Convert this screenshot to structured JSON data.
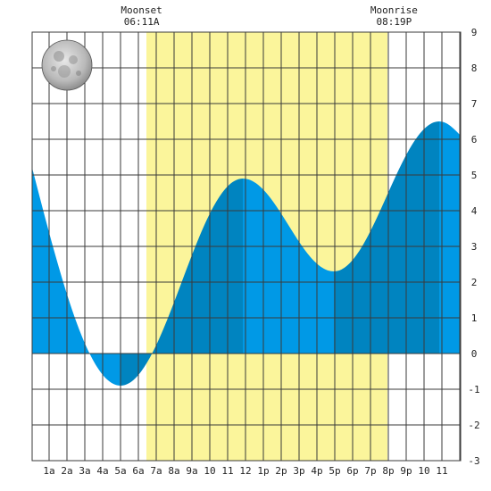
{
  "chart_data": {
    "type": "area",
    "title": "",
    "xlabel": "",
    "ylabel": "",
    "x_range_hours": [
      0.05,
      24.05
    ],
    "ylim": [
      -3,
      9
    ],
    "x_tick_labels": [
      {
        "hour": 1,
        "label": "1a"
      },
      {
        "hour": 2,
        "label": "2a"
      },
      {
        "hour": 3,
        "label": "3a"
      },
      {
        "hour": 4,
        "label": "4a"
      },
      {
        "hour": 5,
        "label": "5a"
      },
      {
        "hour": 6,
        "label": "6a"
      },
      {
        "hour": 7,
        "label": "7a"
      },
      {
        "hour": 8,
        "label": "8a"
      },
      {
        "hour": 9,
        "label": "9a"
      },
      {
        "hour": 10,
        "label": "10"
      },
      {
        "hour": 11,
        "label": "11"
      },
      {
        "hour": 12,
        "label": "12"
      },
      {
        "hour": 13,
        "label": "1p"
      },
      {
        "hour": 14,
        "label": "2p"
      },
      {
        "hour": 15,
        "label": "3p"
      },
      {
        "hour": 16,
        "label": "4p"
      },
      {
        "hour": 17,
        "label": "5p"
      },
      {
        "hour": 18,
        "label": "6p"
      },
      {
        "hour": 19,
        "label": "7p"
      },
      {
        "hour": 20,
        "label": "8p"
      },
      {
        "hour": 21,
        "label": "9p"
      },
      {
        "hour": 22,
        "label": "10"
      },
      {
        "hour": 23,
        "label": "11"
      }
    ],
    "y_tick_labels": [
      "-3",
      "-2",
      "-1",
      "0",
      "1",
      "2",
      "3",
      "4",
      "5",
      "6",
      "7",
      "8",
      "9"
    ],
    "y_ticks": [
      -3,
      -2,
      -1,
      0,
      1,
      2,
      3,
      4,
      5,
      6,
      7,
      8,
      9
    ],
    "tide_extremes": [
      {
        "hour": 5.0,
        "height": -0.9,
        "kind": "low"
      },
      {
        "hour": 11.85,
        "height": 4.9,
        "kind": "high"
      },
      {
        "hour": 16.95,
        "height": 2.3,
        "kind": "low"
      },
      {
        "hour": 22.85,
        "height": 6.5,
        "kind": "high"
      }
    ],
    "tide_start": {
      "hour": 0.05,
      "height": 5.2
    },
    "tide_end": {
      "hour": 24.05,
      "height": 6.1
    },
    "daylight": {
      "start_hour": 6.45,
      "end_hour": 19.95,
      "color": "#fbf59b"
    },
    "moonset": {
      "label": "Moonset",
      "time": "06:11A",
      "hour": 6.18
    },
    "moonrise": {
      "label": "Moonrise",
      "time": "08:19P",
      "hour": 20.32
    },
    "colors": {
      "tide_light": "#0099e6",
      "tide_dark": "#0084c0",
      "grid": "#3a3a3a",
      "background": "#ffffff"
    },
    "moon_phase": "full-moon-icon"
  }
}
